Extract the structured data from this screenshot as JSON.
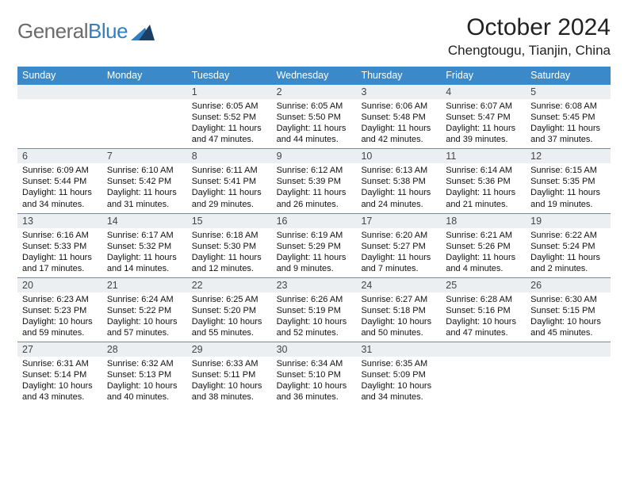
{
  "logo": {
    "general": "General",
    "blue": "Blue"
  },
  "title": "October 2024",
  "location": "Chengtougu, Tianjin, China",
  "colors": {
    "header_bg": "#3b89c9",
    "header_text": "#ffffff",
    "daynum_bg": "#eceff2",
    "week_border": "#7a8aa0",
    "logo_gray": "#6b6b6b",
    "logo_blue": "#2f7fc2"
  },
  "days_of_week": [
    "Sunday",
    "Monday",
    "Tuesday",
    "Wednesday",
    "Thursday",
    "Friday",
    "Saturday"
  ],
  "weeks": [
    [
      {
        "n": "",
        "sr": "",
        "ss": "",
        "dl": ""
      },
      {
        "n": "",
        "sr": "",
        "ss": "",
        "dl": ""
      },
      {
        "n": "1",
        "sr": "Sunrise: 6:05 AM",
        "ss": "Sunset: 5:52 PM",
        "dl": "Daylight: 11 hours and 47 minutes."
      },
      {
        "n": "2",
        "sr": "Sunrise: 6:05 AM",
        "ss": "Sunset: 5:50 PM",
        "dl": "Daylight: 11 hours and 44 minutes."
      },
      {
        "n": "3",
        "sr": "Sunrise: 6:06 AM",
        "ss": "Sunset: 5:48 PM",
        "dl": "Daylight: 11 hours and 42 minutes."
      },
      {
        "n": "4",
        "sr": "Sunrise: 6:07 AM",
        "ss": "Sunset: 5:47 PM",
        "dl": "Daylight: 11 hours and 39 minutes."
      },
      {
        "n": "5",
        "sr": "Sunrise: 6:08 AM",
        "ss": "Sunset: 5:45 PM",
        "dl": "Daylight: 11 hours and 37 minutes."
      }
    ],
    [
      {
        "n": "6",
        "sr": "Sunrise: 6:09 AM",
        "ss": "Sunset: 5:44 PM",
        "dl": "Daylight: 11 hours and 34 minutes."
      },
      {
        "n": "7",
        "sr": "Sunrise: 6:10 AM",
        "ss": "Sunset: 5:42 PM",
        "dl": "Daylight: 11 hours and 31 minutes."
      },
      {
        "n": "8",
        "sr": "Sunrise: 6:11 AM",
        "ss": "Sunset: 5:41 PM",
        "dl": "Daylight: 11 hours and 29 minutes."
      },
      {
        "n": "9",
        "sr": "Sunrise: 6:12 AM",
        "ss": "Sunset: 5:39 PM",
        "dl": "Daylight: 11 hours and 26 minutes."
      },
      {
        "n": "10",
        "sr": "Sunrise: 6:13 AM",
        "ss": "Sunset: 5:38 PM",
        "dl": "Daylight: 11 hours and 24 minutes."
      },
      {
        "n": "11",
        "sr": "Sunrise: 6:14 AM",
        "ss": "Sunset: 5:36 PM",
        "dl": "Daylight: 11 hours and 21 minutes."
      },
      {
        "n": "12",
        "sr": "Sunrise: 6:15 AM",
        "ss": "Sunset: 5:35 PM",
        "dl": "Daylight: 11 hours and 19 minutes."
      }
    ],
    [
      {
        "n": "13",
        "sr": "Sunrise: 6:16 AM",
        "ss": "Sunset: 5:33 PM",
        "dl": "Daylight: 11 hours and 17 minutes."
      },
      {
        "n": "14",
        "sr": "Sunrise: 6:17 AM",
        "ss": "Sunset: 5:32 PM",
        "dl": "Daylight: 11 hours and 14 minutes."
      },
      {
        "n": "15",
        "sr": "Sunrise: 6:18 AM",
        "ss": "Sunset: 5:30 PM",
        "dl": "Daylight: 11 hours and 12 minutes."
      },
      {
        "n": "16",
        "sr": "Sunrise: 6:19 AM",
        "ss": "Sunset: 5:29 PM",
        "dl": "Daylight: 11 hours and 9 minutes."
      },
      {
        "n": "17",
        "sr": "Sunrise: 6:20 AM",
        "ss": "Sunset: 5:27 PM",
        "dl": "Daylight: 11 hours and 7 minutes."
      },
      {
        "n": "18",
        "sr": "Sunrise: 6:21 AM",
        "ss": "Sunset: 5:26 PM",
        "dl": "Daylight: 11 hours and 4 minutes."
      },
      {
        "n": "19",
        "sr": "Sunrise: 6:22 AM",
        "ss": "Sunset: 5:24 PM",
        "dl": "Daylight: 11 hours and 2 minutes."
      }
    ],
    [
      {
        "n": "20",
        "sr": "Sunrise: 6:23 AM",
        "ss": "Sunset: 5:23 PM",
        "dl": "Daylight: 10 hours and 59 minutes."
      },
      {
        "n": "21",
        "sr": "Sunrise: 6:24 AM",
        "ss": "Sunset: 5:22 PM",
        "dl": "Daylight: 10 hours and 57 minutes."
      },
      {
        "n": "22",
        "sr": "Sunrise: 6:25 AM",
        "ss": "Sunset: 5:20 PM",
        "dl": "Daylight: 10 hours and 55 minutes."
      },
      {
        "n": "23",
        "sr": "Sunrise: 6:26 AM",
        "ss": "Sunset: 5:19 PM",
        "dl": "Daylight: 10 hours and 52 minutes."
      },
      {
        "n": "24",
        "sr": "Sunrise: 6:27 AM",
        "ss": "Sunset: 5:18 PM",
        "dl": "Daylight: 10 hours and 50 minutes."
      },
      {
        "n": "25",
        "sr": "Sunrise: 6:28 AM",
        "ss": "Sunset: 5:16 PM",
        "dl": "Daylight: 10 hours and 47 minutes."
      },
      {
        "n": "26",
        "sr": "Sunrise: 6:30 AM",
        "ss": "Sunset: 5:15 PM",
        "dl": "Daylight: 10 hours and 45 minutes."
      }
    ],
    [
      {
        "n": "27",
        "sr": "Sunrise: 6:31 AM",
        "ss": "Sunset: 5:14 PM",
        "dl": "Daylight: 10 hours and 43 minutes."
      },
      {
        "n": "28",
        "sr": "Sunrise: 6:32 AM",
        "ss": "Sunset: 5:13 PM",
        "dl": "Daylight: 10 hours and 40 minutes."
      },
      {
        "n": "29",
        "sr": "Sunrise: 6:33 AM",
        "ss": "Sunset: 5:11 PM",
        "dl": "Daylight: 10 hours and 38 minutes."
      },
      {
        "n": "30",
        "sr": "Sunrise: 6:34 AM",
        "ss": "Sunset: 5:10 PM",
        "dl": "Daylight: 10 hours and 36 minutes."
      },
      {
        "n": "31",
        "sr": "Sunrise: 6:35 AM",
        "ss": "Sunset: 5:09 PM",
        "dl": "Daylight: 10 hours and 34 minutes."
      },
      {
        "n": "",
        "sr": "",
        "ss": "",
        "dl": ""
      },
      {
        "n": "",
        "sr": "",
        "ss": "",
        "dl": ""
      }
    ]
  ]
}
